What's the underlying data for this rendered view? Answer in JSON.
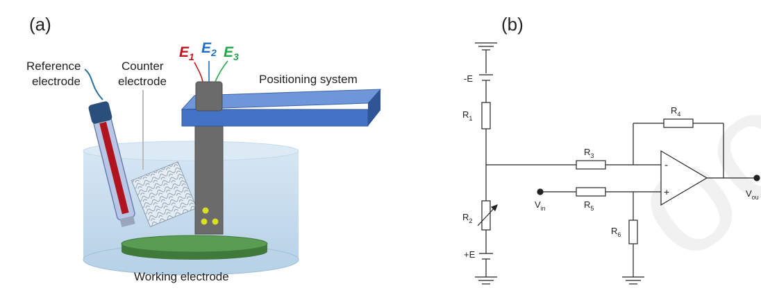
{
  "panel_a": {
    "label": "(a)",
    "reference_label_line1": "Reference",
    "reference_label_line2": "electrode",
    "counter_label_line1": "Counter",
    "counter_label_line2": "electrode",
    "positioning_label": "Positioning system",
    "working_label": "Working electrode",
    "e1": "E",
    "e1_sub": "1",
    "e2": "E",
    "e2_sub": "2",
    "e3": "E",
    "e3_sub": "3",
    "colors": {
      "e1": "#c0141c",
      "e2": "#1f6fc5",
      "e3": "#22a84a",
      "bath": "#bcd6ea",
      "positioner": "#4472c4",
      "working_disc": "#4f8f4a",
      "electrode_rod": "#666666",
      "dots": "#d9e021"
    }
  },
  "panel_b": {
    "label": "(b)",
    "neg_supply": "-E",
    "pos_supply": "+E",
    "r1": "R",
    "r1_sub": "1",
    "r2": "R",
    "r2_sub": "2",
    "r3": "R",
    "r3_sub": "3",
    "r4": "R",
    "r4_sub": "4",
    "r5": "R",
    "r5_sub": "5",
    "r6": "R",
    "r6_sub": "6",
    "vin": "V",
    "vin_sub": "in",
    "vout": "V",
    "vout_sub": "ou",
    "minus": "-",
    "plus": "+"
  }
}
